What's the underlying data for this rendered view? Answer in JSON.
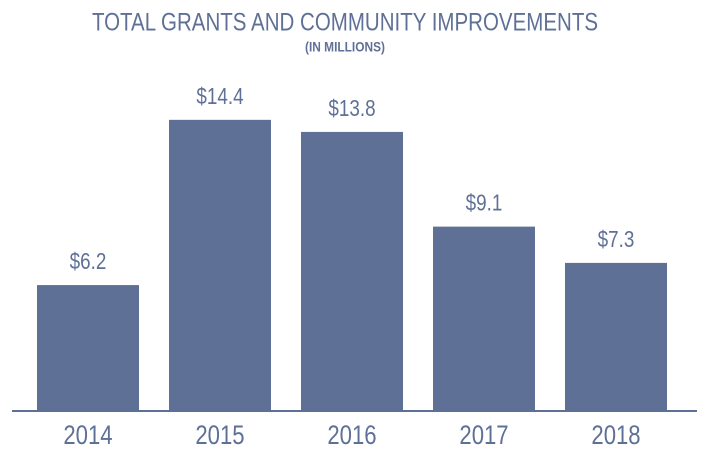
{
  "chart_data": {
    "type": "bar",
    "title": "TOTAL GRANTS AND COMMUNITY IMPROVEMENTS",
    "subtitle": "(IN MILLIONS)",
    "categories": [
      "2014",
      "2015",
      "2016",
      "2017",
      "2018"
    ],
    "values": [
      6.2,
      14.4,
      13.8,
      9.1,
      7.3
    ],
    "value_labels": [
      "$6.2",
      "$14.4",
      "$13.8",
      "$9.1",
      "$7.3"
    ],
    "color": "#5f7096"
  }
}
